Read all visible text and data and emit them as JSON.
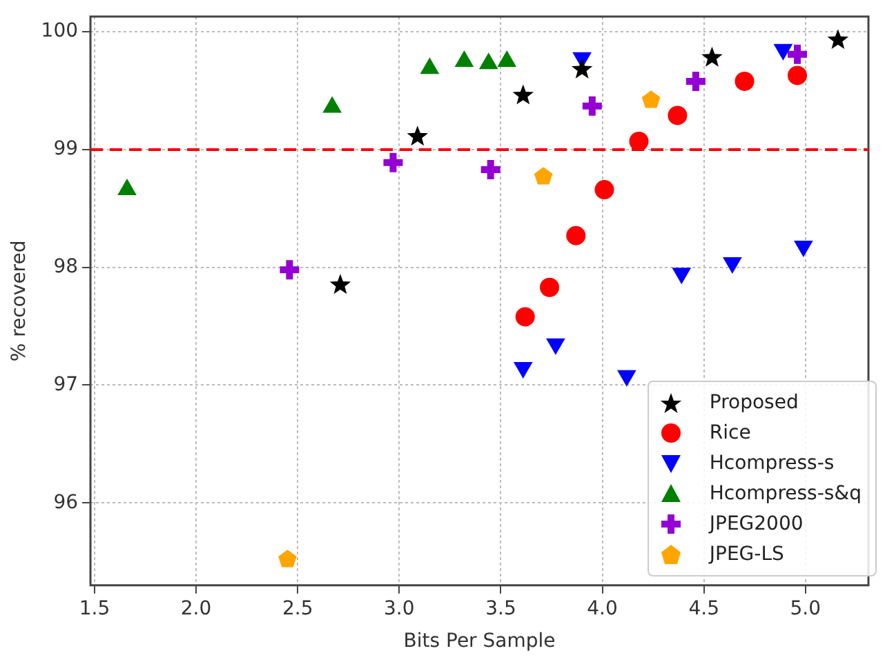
{
  "chart_data": {
    "type": "scatter",
    "xlabel": "Bits Per Sample",
    "ylabel": "% recovered",
    "xlim": [
      1.48,
      5.31
    ],
    "ylim": [
      95.3,
      100.13
    ],
    "xticks": [
      {
        "value": 1.5,
        "label": "1.5"
      },
      {
        "value": 2,
        "label": "2.0"
      },
      {
        "value": 2.5,
        "label": "2.5"
      },
      {
        "value": 3,
        "label": "3.0"
      },
      {
        "value": 3.5,
        "label": "3.5"
      },
      {
        "value": 4,
        "label": "4.0"
      },
      {
        "value": 4.5,
        "label": "4.5"
      },
      {
        "value": 5,
        "label": "5.0"
      }
    ],
    "yticks": [
      96,
      97,
      98,
      99,
      100
    ],
    "grid": true,
    "legend": "bottom right",
    "ref_lines": [
      {
        "axis": "y",
        "value": 99,
        "color": "#ff0000",
        "line_style": "dashed"
      }
    ],
    "series": [
      {
        "name": "Proposed",
        "color": "#000000",
        "marker": "star",
        "x": [
          2.71,
          3.09,
          3.61,
          3.9,
          4.54,
          5.16
        ],
        "values": [
          97.85,
          99.11,
          99.46,
          99.68,
          99.78,
          99.93
        ]
      },
      {
        "name": "Rice",
        "color": "#ff0000",
        "marker": "circle",
        "x": [
          3.62,
          3.74,
          3.87,
          4.01,
          4.18,
          4.37,
          4.7,
          4.96
        ],
        "values": [
          97.58,
          97.83,
          98.27,
          98.66,
          99.07,
          99.29,
          99.58,
          99.63
        ]
      },
      {
        "name": "Hcompress-s",
        "color": "#0000ff",
        "marker": "triangle_down",
        "x": [
          3.61,
          3.77,
          3.9,
          4.12,
          4.39,
          4.64,
          4.89,
          4.99
        ],
        "values": [
          97.15,
          97.35,
          99.78,
          97.08,
          97.95,
          98.04,
          99.85,
          98.18
        ]
      },
      {
        "name": "Hcompress-s&q",
        "color": "#008000",
        "marker": "triangle",
        "x": [
          1.66,
          2.67,
          3.15,
          3.32,
          3.44,
          3.53
        ],
        "values": [
          98.66,
          99.36,
          99.69,
          99.75,
          99.73,
          99.75
        ]
      },
      {
        "name": "JPEG2000",
        "color": "#9400d3",
        "marker": "cross",
        "x": [
          2.46,
          2.97,
          3.45,
          3.95,
          4.46,
          4.96
        ],
        "values": [
          97.98,
          98.89,
          98.83,
          99.37,
          99.58,
          99.81
        ]
      },
      {
        "name": "JPEG-LS",
        "color": "#ffa500",
        "x": [
          2.45,
          3.71,
          4.24
        ],
        "values": [
          95.52,
          98.77,
          99.42
        ]
      }
    ]
  }
}
